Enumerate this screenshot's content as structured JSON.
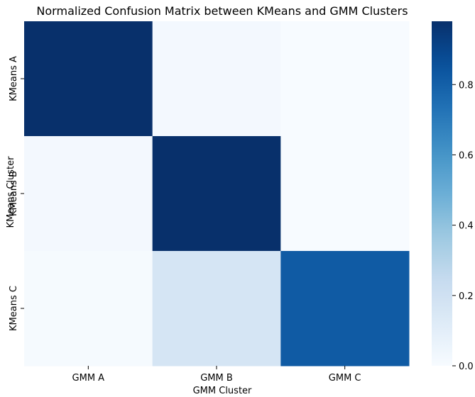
{
  "chart_data": {
    "type": "heatmap",
    "title": "Normalized Confusion Matrix between KMeans and GMM Clusters",
    "xlabel": "GMM Cluster",
    "ylabel": "KMeans Cluster",
    "x_categories": [
      "GMM A",
      "GMM B",
      "GMM C"
    ],
    "y_categories": [
      "KMeans A",
      "KMeans B",
      "KMeans C"
    ],
    "values": [
      [
        0.98,
        0.02,
        0.0
      ],
      [
        0.02,
        0.98,
        0.0
      ],
      [
        0.01,
        0.17,
        0.82
      ]
    ],
    "colormap": "Blues",
    "colorbar": {
      "min": 0.0,
      "max": 0.98,
      "ticks": [
        0.0,
        0.2,
        0.4,
        0.6,
        0.8
      ],
      "tick_labels": [
        "0.0",
        "0.2",
        "0.4",
        "0.6",
        "0.8"
      ]
    },
    "grid": false,
    "legend": "colorbar-right"
  }
}
